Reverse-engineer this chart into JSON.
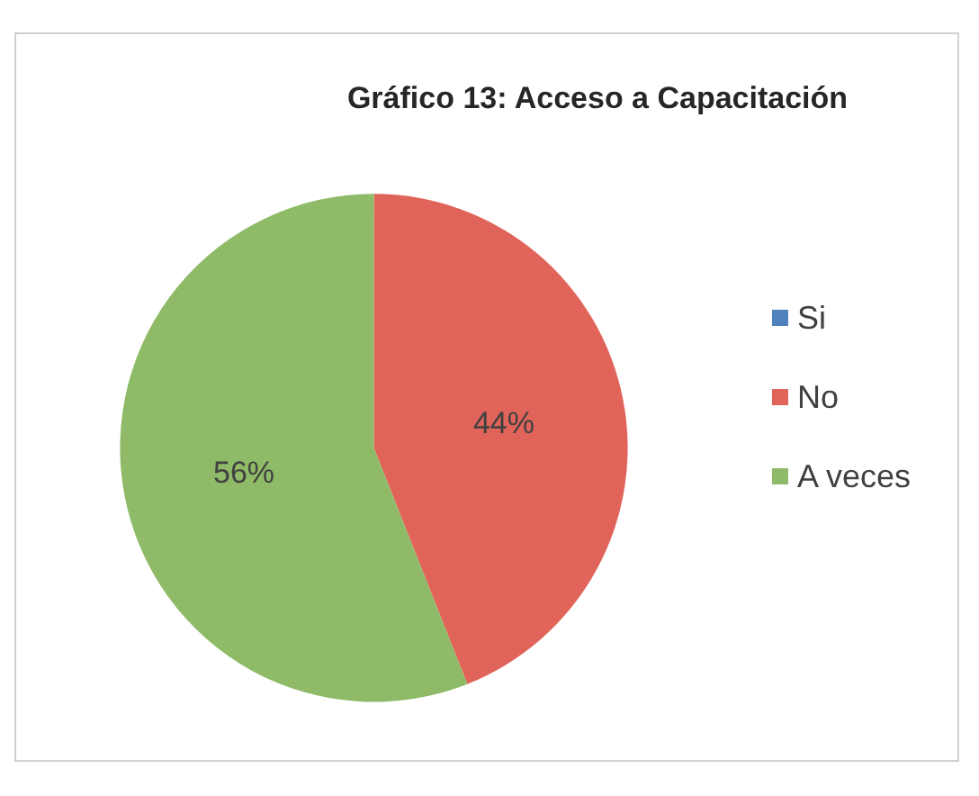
{
  "chart_data": {
    "type": "pie",
    "title": "Gráfico 13: Acceso a Capacitación",
    "categories": [
      "Si",
      "No",
      "A veces"
    ],
    "values": [
      0,
      44,
      56
    ],
    "colors": [
      "#4f81bd",
      "#e0645a",
      "#8fbb68"
    ],
    "value_labels": [
      null,
      "44%",
      "56%"
    ],
    "legend": "right"
  }
}
